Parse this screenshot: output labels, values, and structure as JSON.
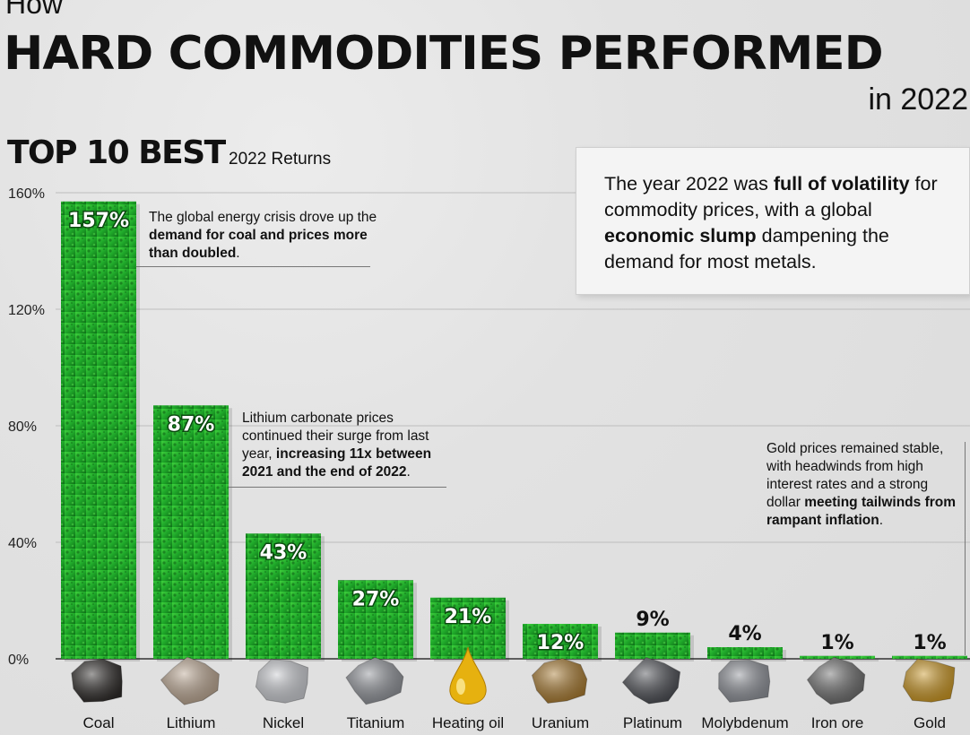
{
  "header": {
    "pre_title": "How",
    "title": "HARD COMMODITIES PERFORMED",
    "year": "in 2022"
  },
  "section": {
    "title": "TOP 10 BEST",
    "subtitle": "2022 Returns"
  },
  "info_box": {
    "p1": "The year 2022 was ",
    "b1": "full of volatility",
    "p2": " for commodity prices, with a global ",
    "b2": "economic slump",
    "p3": " dampening the demand for most metals."
  },
  "annotations": {
    "coal": {
      "t1": "The global energy crisis drove up the ",
      "b1": "demand for coal and prices more than doubled",
      "t2": "."
    },
    "lithium": {
      "t1": "Lithium carbonate prices continued their surge from last year, ",
      "b1": "increasing 11x between 2021 and the end of 2022",
      "t2": "."
    },
    "gold": {
      "t1": "Gold prices remained stable, with headwinds from high interest rates and a strong dollar ",
      "b1": "meeting tailwinds from rampant inflation",
      "t2": "."
    }
  },
  "colors": {
    "bar_green": "#1fa82a",
    "bar_dark": "#0f6e17",
    "bar_light": "#3fcf3c",
    "gridline": "#bdbdbd"
  },
  "chart_data": {
    "type": "bar",
    "categories": [
      "Coal",
      "Lithium",
      "Nickel",
      "Titanium",
      "Heating oil",
      "Uranium",
      "Platinum",
      "Molybdenum",
      "Iron ore",
      "Gold"
    ],
    "values": [
      157,
      87,
      43,
      27,
      21,
      12,
      9,
      4,
      1,
      1
    ],
    "value_labels": [
      "157%",
      "87%",
      "43%",
      "27%",
      "21%",
      "12%",
      "9%",
      "4%",
      "1%",
      "1%"
    ],
    "y_ticks": [
      0,
      40,
      80,
      120,
      160
    ],
    "y_tick_labels": [
      "0%",
      "40%",
      "80%",
      "120%",
      "160%"
    ],
    "ylim": [
      0,
      160
    ],
    "grid": true,
    "icons": [
      "coal-icon",
      "lithium-icon",
      "nickel-icon",
      "titanium-icon",
      "oil-drop-icon",
      "uranium-icon",
      "platinum-icon",
      "molybdenum-icon",
      "iron-ore-icon",
      "gold-icon"
    ],
    "icon_colors": [
      "#2e2b29",
      "#b9a48f",
      "#c9cbd0",
      "#8d9096",
      "#e6b10f",
      "#a7792f",
      "#4a4c52",
      "#8e9198",
      "#6b6b6b",
      "#c99624"
    ]
  }
}
